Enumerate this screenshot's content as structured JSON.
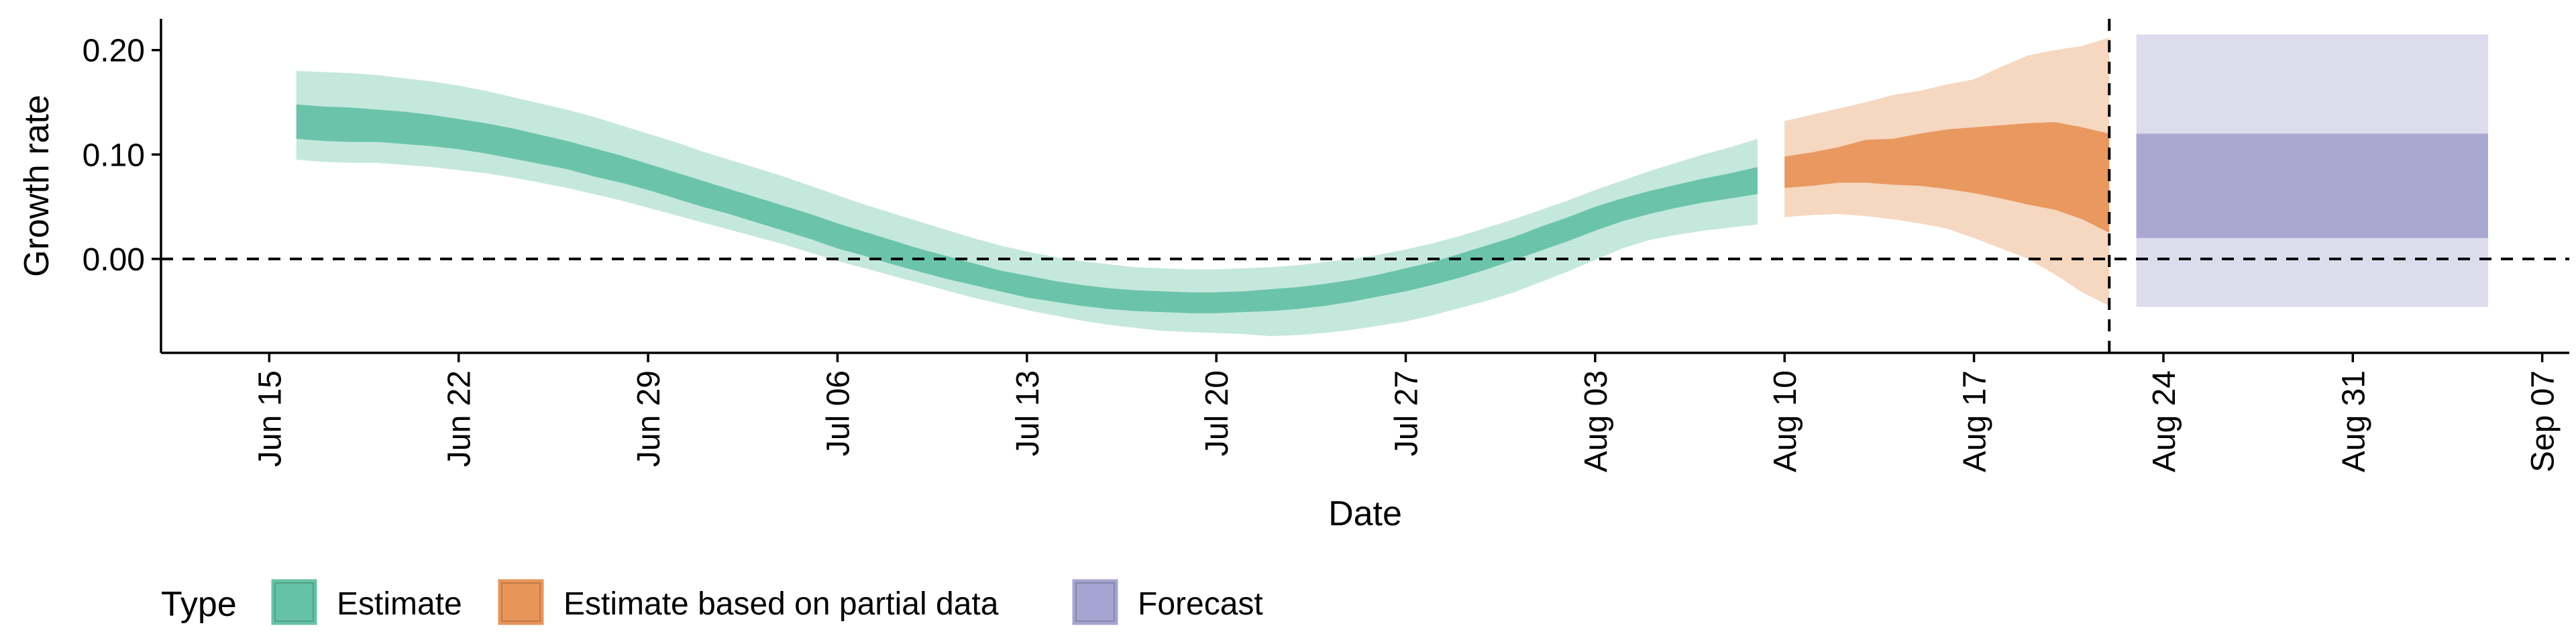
{
  "chart_data": {
    "type": "area",
    "xlabel": "Date",
    "ylabel": "Growth rate",
    "xlim": [
      "2020-06-11",
      "2020-09-08"
    ],
    "ylim": [
      -0.09,
      0.23
    ],
    "x_ticks": [
      "2020-06-15",
      "2020-06-22",
      "2020-06-29",
      "2020-07-06",
      "2020-07-13",
      "2020-07-20",
      "2020-07-27",
      "2020-08-03",
      "2020-08-10",
      "2020-08-17",
      "2020-08-24",
      "2020-08-31",
      "2020-09-07"
    ],
    "x_tick_labels": [
      "Jun 15",
      "Jun 22",
      "Jun 29",
      "Jul 06",
      "Jul 13",
      "Jul 20",
      "Jul 27",
      "Aug 03",
      "Aug 10",
      "Aug 17",
      "Aug 24",
      "Aug 31",
      "Sep 07"
    ],
    "y_ticks": [
      0.0,
      0.1,
      0.2
    ],
    "y_tick_labels": [
      "0.00",
      "0.10",
      "0.20"
    ],
    "reference_lines": {
      "horizontal_y": 0.0,
      "vertical_x": "2020-08-22"
    },
    "legend": {
      "title": "Type",
      "position": "bottom-left",
      "entries": [
        {
          "label": "Estimate",
          "color": "#66c2a5"
        },
        {
          "label": "Estimate based on partial data",
          "color": "#e8955a"
        },
        {
          "label": "Forecast",
          "color": "#a6a4d0"
        }
      ]
    },
    "series": [
      {
        "name": "Estimate",
        "color": "#66c2a5",
        "x": [
          "2020-06-16",
          "2020-06-17",
          "2020-06-18",
          "2020-06-19",
          "2020-06-20",
          "2020-06-21",
          "2020-06-22",
          "2020-06-23",
          "2020-06-24",
          "2020-06-25",
          "2020-06-26",
          "2020-06-27",
          "2020-06-28",
          "2020-06-29",
          "2020-06-30",
          "2020-07-01",
          "2020-07-02",
          "2020-07-03",
          "2020-07-04",
          "2020-07-05",
          "2020-07-06",
          "2020-07-07",
          "2020-07-08",
          "2020-07-09",
          "2020-07-10",
          "2020-07-11",
          "2020-07-12",
          "2020-07-13",
          "2020-07-14",
          "2020-07-15",
          "2020-07-16",
          "2020-07-17",
          "2020-07-18",
          "2020-07-19",
          "2020-07-20",
          "2020-07-21",
          "2020-07-22",
          "2020-07-23",
          "2020-07-24",
          "2020-07-25",
          "2020-07-26",
          "2020-07-27",
          "2020-07-28",
          "2020-07-29",
          "2020-07-30",
          "2020-07-31",
          "2020-08-01",
          "2020-08-02",
          "2020-08-03",
          "2020-08-04",
          "2020-08-05",
          "2020-08-06",
          "2020-08-07",
          "2020-08-08",
          "2020-08-09"
        ],
        "lower90": [
          0.095,
          0.093,
          0.092,
          0.092,
          0.09,
          0.088,
          0.085,
          0.082,
          0.078,
          0.073,
          0.068,
          0.062,
          0.056,
          0.049,
          0.042,
          0.035,
          0.028,
          0.021,
          0.014,
          0.006,
          -0.002,
          -0.009,
          -0.016,
          -0.023,
          -0.03,
          -0.037,
          -0.043,
          -0.049,
          -0.054,
          -0.059,
          -0.063,
          -0.066,
          -0.069,
          -0.07,
          -0.071,
          -0.072,
          -0.074,
          -0.073,
          -0.071,
          -0.068,
          -0.064,
          -0.06,
          -0.054,
          -0.047,
          -0.04,
          -0.032,
          -0.022,
          -0.012,
          -0.001,
          0.01,
          0.018,
          0.023,
          0.027,
          0.03,
          0.033
        ],
        "lower50": [
          0.115,
          0.113,
          0.112,
          0.112,
          0.11,
          0.108,
          0.105,
          0.101,
          0.096,
          0.091,
          0.086,
          0.079,
          0.073,
          0.066,
          0.058,
          0.05,
          0.043,
          0.035,
          0.027,
          0.019,
          0.01,
          0.003,
          -0.005,
          -0.012,
          -0.019,
          -0.025,
          -0.031,
          -0.037,
          -0.041,
          -0.045,
          -0.048,
          -0.05,
          -0.051,
          -0.052,
          -0.052,
          -0.051,
          -0.05,
          -0.048,
          -0.045,
          -0.041,
          -0.036,
          -0.031,
          -0.025,
          -0.018,
          -0.01,
          -0.001,
          0.008,
          0.017,
          0.027,
          0.036,
          0.043,
          0.049,
          0.054,
          0.058,
          0.062
        ],
        "upper50": [
          0.148,
          0.146,
          0.145,
          0.143,
          0.141,
          0.138,
          0.134,
          0.13,
          0.125,
          0.119,
          0.113,
          0.106,
          0.099,
          0.091,
          0.083,
          0.075,
          0.067,
          0.059,
          0.051,
          0.043,
          0.034,
          0.026,
          0.018,
          0.01,
          0.003,
          -0.004,
          -0.011,
          -0.016,
          -0.021,
          -0.025,
          -0.028,
          -0.03,
          -0.031,
          -0.032,
          -0.032,
          -0.031,
          -0.029,
          -0.027,
          -0.024,
          -0.02,
          -0.015,
          -0.009,
          -0.003,
          0.005,
          0.013,
          0.021,
          0.031,
          0.04,
          0.05,
          0.058,
          0.065,
          0.071,
          0.077,
          0.082,
          0.088
        ],
        "upper90": [
          0.18,
          0.179,
          0.178,
          0.176,
          0.173,
          0.17,
          0.166,
          0.161,
          0.155,
          0.149,
          0.143,
          0.136,
          0.128,
          0.12,
          0.112,
          0.103,
          0.095,
          0.087,
          0.079,
          0.07,
          0.061,
          0.052,
          0.044,
          0.036,
          0.028,
          0.02,
          0.013,
          0.007,
          0.002,
          -0.002,
          -0.005,
          -0.008,
          -0.009,
          -0.01,
          -0.01,
          -0.009,
          -0.008,
          -0.006,
          -0.003,
          0.0,
          0.004,
          0.009,
          0.015,
          0.022,
          0.03,
          0.038,
          0.047,
          0.056,
          0.066,
          0.075,
          0.084,
          0.092,
          0.1,
          0.107,
          0.115
        ]
      },
      {
        "name": "Estimate based on partial data",
        "color": "#e8955a",
        "x": [
          "2020-08-10",
          "2020-08-11",
          "2020-08-12",
          "2020-08-13",
          "2020-08-14",
          "2020-08-15",
          "2020-08-16",
          "2020-08-17",
          "2020-08-18",
          "2020-08-19",
          "2020-08-20",
          "2020-08-21",
          "2020-08-22"
        ],
        "lower90": [
          0.04,
          0.042,
          0.043,
          0.041,
          0.038,
          0.034,
          0.029,
          0.02,
          0.01,
          0.0,
          -0.015,
          -0.032,
          -0.045
        ],
        "lower50": [
          0.068,
          0.07,
          0.073,
          0.073,
          0.071,
          0.07,
          0.067,
          0.063,
          0.058,
          0.052,
          0.047,
          0.038,
          0.025
        ],
        "upper50": [
          0.098,
          0.102,
          0.107,
          0.114,
          0.115,
          0.12,
          0.124,
          0.126,
          0.128,
          0.13,
          0.131,
          0.126,
          0.12
        ],
        "upper90": [
          0.132,
          0.138,
          0.144,
          0.15,
          0.157,
          0.161,
          0.167,
          0.172,
          0.184,
          0.195,
          0.2,
          0.204,
          0.212
        ]
      },
      {
        "name": "Forecast",
        "color": "#a6a4d0",
        "x": [
          "2020-08-23",
          "2020-09-05"
        ],
        "lower90": [
          -0.046,
          -0.046
        ],
        "lower50": [
          0.02,
          0.02
        ],
        "upper50": [
          0.12,
          0.12
        ],
        "upper90": [
          0.215,
          0.215
        ]
      }
    ]
  }
}
